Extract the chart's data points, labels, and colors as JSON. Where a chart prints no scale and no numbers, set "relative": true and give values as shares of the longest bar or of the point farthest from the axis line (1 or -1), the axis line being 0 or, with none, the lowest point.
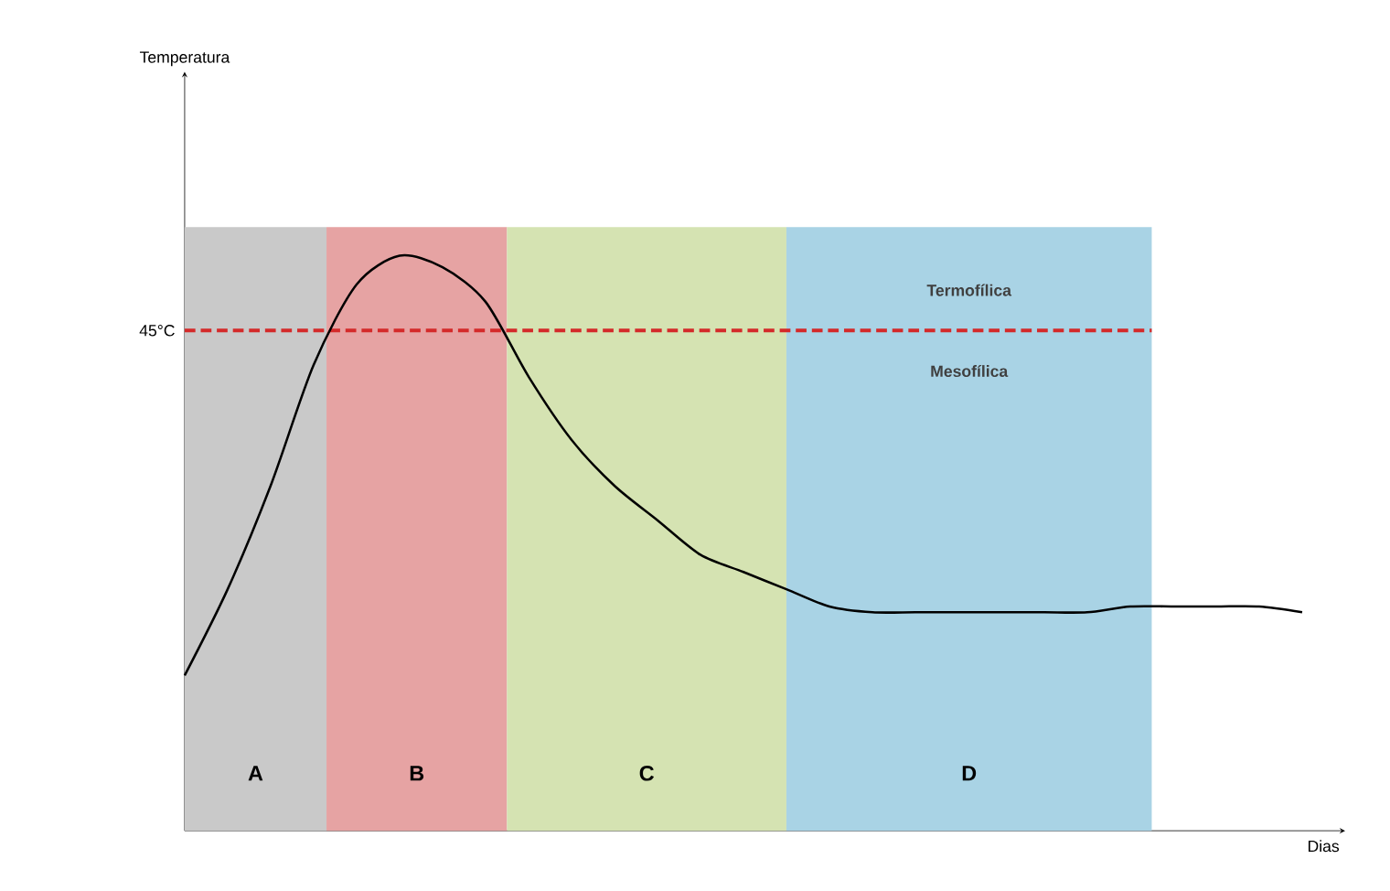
{
  "chart_data": {
    "type": "line",
    "relative": true,
    "xlabel": "Dias",
    "categories": [
      null,
      null,
      null,
      null,
      null,
      null,
      null,
      null,
      null,
      null,
      null,
      null,
      null,
      null,
      null,
      null,
      null,
      null,
      null,
      null,
      null,
      null,
      null,
      null,
      null,
      null,
      null
    ],
    "series": [
      {
        "color": "#000000",
        "values": [
          0.27,
          0.42,
          0.6,
          0.81,
          0.95,
          1.0,
          0.98,
          0.92,
          0.79,
          0.68,
          0.6,
          0.54,
          0.48,
          0.45,
          0.42,
          0.39,
          0.38,
          0.38,
          0.38,
          0.38,
          0.38,
          0.38,
          0.39,
          0.39,
          0.39,
          0.39,
          0.38
        ]
      }
    ],
    "ref_lines": [
      {
        "axis": "y",
        "value": 0.87,
        "label": "45°C",
        "color": "#d42a2a",
        "line_style": "dashed"
      }
    ],
    "annotations": [
      "Termofílica",
      "Mesofílica",
      "A",
      "B",
      "C",
      "D",
      "Temperatura"
    ],
    "marker": "none",
    "line_style": "solid"
  }
}
